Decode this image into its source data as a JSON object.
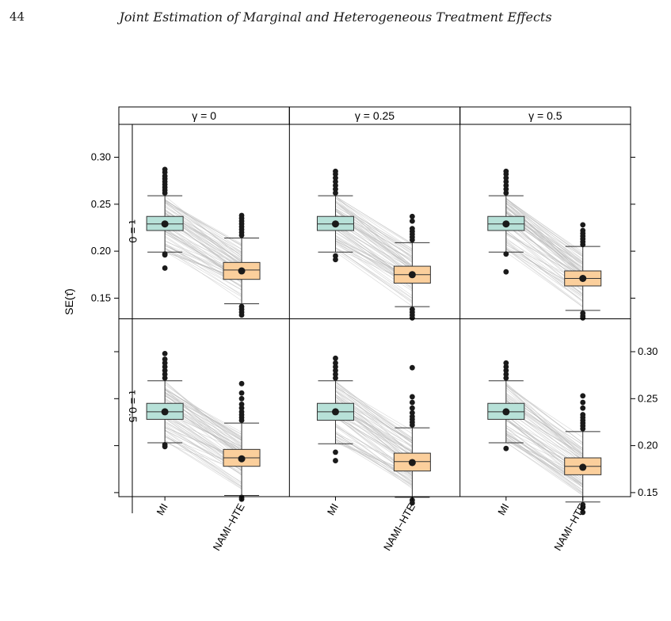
{
  "page": {
    "page_number": "44",
    "running_head": "Joint Estimation of Marginal and Heterogeneous Treatment Effects"
  },
  "chart_data": {
    "type": "box",
    "ylabel": "SE(τ̂)",
    "col_strips": [
      "γ = 0",
      "γ = 0.25",
      "γ = 0.5"
    ],
    "row_strips": [
      "τ = 0",
      "τ = 0.5"
    ],
    "categories": [
      "MI",
      "NAMI−HTE"
    ],
    "ylim": [
      0.128,
      0.335
    ],
    "yticks": [
      0.15,
      0.2,
      0.25,
      0.3
    ],
    "ytick_labels": [
      "0.15",
      "0.20",
      "0.25",
      "0.30"
    ],
    "colors": {
      "MI": "#b7e1d8",
      "NAMI−HTE": "#fbcf9c",
      "points": "#1a1a1a",
      "lines": "#b5b5b5"
    },
    "panels": [
      {
        "row": 0,
        "col": 0,
        "boxes": [
          {
            "category": "MI",
            "whisker_low": 0.199,
            "q1": 0.222,
            "median": 0.229,
            "q3": 0.237,
            "whisker_high": 0.259,
            "mean": 0.229,
            "outliers_low": [
              0.197,
              0.196,
              0.182
            ],
            "outliers_high": [
              0.262,
              0.265,
              0.268,
              0.271,
              0.274,
              0.277,
              0.28,
              0.284,
              0.287
            ]
          },
          {
            "category": "NAMI−HTE",
            "whisker_low": 0.144,
            "q1": 0.17,
            "median": 0.18,
            "q3": 0.188,
            "whisker_high": 0.214,
            "mean": 0.179,
            "outliers_low": [
              0.141,
              0.138,
              0.135,
              0.132
            ],
            "outliers_high": [
              0.217,
              0.22,
              0.223,
              0.226,
              0.229,
              0.232,
              0.235,
              0.238
            ]
          }
        ]
      },
      {
        "row": 0,
        "col": 1,
        "boxes": [
          {
            "category": "MI",
            "whisker_low": 0.199,
            "q1": 0.222,
            "median": 0.229,
            "q3": 0.237,
            "whisker_high": 0.259,
            "mean": 0.229,
            "outliers_low": [
              0.195,
              0.191
            ],
            "outliers_high": [
              0.262,
              0.266,
              0.27,
              0.274,
              0.278,
              0.282,
              0.285
            ]
          },
          {
            "category": "NAMI−HTE",
            "whisker_low": 0.141,
            "q1": 0.166,
            "median": 0.175,
            "q3": 0.184,
            "whisker_high": 0.209,
            "mean": 0.175,
            "outliers_low": [
              0.138,
              0.135,
              0.132,
              0.129
            ],
            "outliers_high": [
              0.212,
              0.215,
              0.218,
              0.221,
              0.224,
              0.232,
              0.237
            ]
          }
        ]
      },
      {
        "row": 0,
        "col": 2,
        "boxes": [
          {
            "category": "MI",
            "whisker_low": 0.199,
            "q1": 0.222,
            "median": 0.229,
            "q3": 0.237,
            "whisker_high": 0.259,
            "mean": 0.229,
            "outliers_low": [
              0.197,
              0.178
            ],
            "outliers_high": [
              0.262,
              0.266,
              0.27,
              0.274,
              0.278,
              0.282,
              0.285
            ]
          },
          {
            "category": "NAMI−HTE",
            "whisker_low": 0.137,
            "q1": 0.163,
            "median": 0.171,
            "q3": 0.179,
            "whisker_high": 0.205,
            "mean": 0.171,
            "outliers_low": [
              0.134,
              0.131,
              0.129
            ],
            "outliers_high": [
              0.207,
              0.21,
              0.213,
              0.216,
              0.219,
              0.222,
              0.228
            ]
          }
        ]
      },
      {
        "row": 1,
        "col": 0,
        "boxes": [
          {
            "category": "MI",
            "whisker_low": 0.203,
            "q1": 0.228,
            "median": 0.236,
            "q3": 0.245,
            "whisker_high": 0.269,
            "mean": 0.236,
            "outliers_low": [
              0.201,
              0.199
            ],
            "outliers_high": [
              0.272,
              0.276,
              0.28,
              0.284,
              0.288,
              0.292,
              0.298
            ]
          },
          {
            "category": "NAMI−HTE",
            "whisker_low": 0.147,
            "q1": 0.178,
            "median": 0.187,
            "q3": 0.196,
            "whisker_high": 0.224,
            "mean": 0.186,
            "outliers_low": [
              0.145,
              0.143
            ],
            "outliers_high": [
              0.227,
              0.23,
              0.233,
              0.236,
              0.24,
              0.244,
              0.25,
              0.256,
              0.266
            ]
          }
        ]
      },
      {
        "row": 1,
        "col": 1,
        "boxes": [
          {
            "category": "MI",
            "whisker_low": 0.202,
            "q1": 0.227,
            "median": 0.236,
            "q3": 0.245,
            "whisker_high": 0.269,
            "mean": 0.236,
            "outliers_low": [
              0.193,
              0.184
            ],
            "outliers_high": [
              0.272,
              0.276,
              0.28,
              0.284,
              0.288,
              0.293
            ]
          },
          {
            "category": "NAMI−HTE",
            "whisker_low": 0.145,
            "q1": 0.173,
            "median": 0.183,
            "q3": 0.192,
            "whisker_high": 0.219,
            "mean": 0.182,
            "outliers_low": [
              0.142,
              0.139
            ],
            "outliers_high": [
              0.222,
              0.225,
              0.228,
              0.231,
              0.235,
              0.24,
              0.246,
              0.252,
              0.283
            ]
          }
        ]
      },
      {
        "row": 1,
        "col": 2,
        "boxes": [
          {
            "category": "MI",
            "whisker_low": 0.203,
            "q1": 0.228,
            "median": 0.236,
            "q3": 0.245,
            "whisker_high": 0.269,
            "mean": 0.236,
            "outliers_low": [
              0.197
            ],
            "outliers_high": [
              0.272,
              0.276,
              0.28,
              0.284,
              0.288
            ]
          },
          {
            "category": "NAMI−HTE",
            "whisker_low": 0.14,
            "q1": 0.169,
            "median": 0.178,
            "q3": 0.187,
            "whisker_high": 0.215,
            "mean": 0.177,
            "outliers_low": [
              0.137,
              0.134,
              0.129
            ],
            "outliers_high": [
              0.218,
              0.221,
              0.224,
              0.227,
              0.23,
              0.233,
              0.24,
              0.246,
              0.253
            ]
          }
        ]
      }
    ]
  }
}
